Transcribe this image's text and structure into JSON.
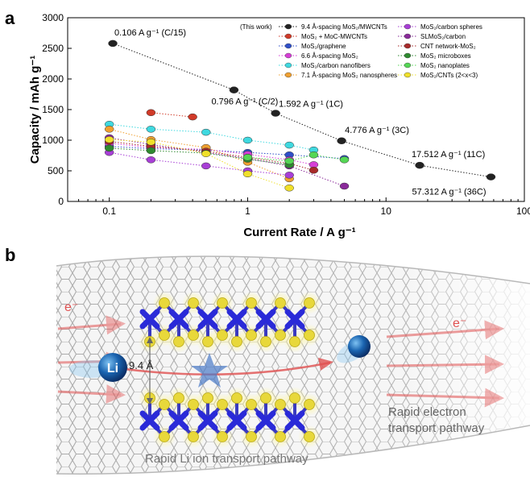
{
  "panel_a_label": "a",
  "panel_b_label": "b",
  "chart_data": {
    "type": "scatter",
    "xscale": "log",
    "xlim": [
      0.05,
      100
    ],
    "ylim": [
      0,
      3000
    ],
    "xlabel": "Current Rate / A g⁻¹",
    "ylabel": "Capacity / mAh g⁻¹",
    "xticks": [
      {
        "value": 0.1,
        "label": "0.1"
      },
      {
        "value": 1,
        "label": "1"
      },
      {
        "value": 10,
        "label": "10"
      },
      {
        "value": 100,
        "label": "100"
      }
    ],
    "yticks": [
      {
        "value": 0,
        "label": "0"
      },
      {
        "value": 500,
        "label": "500"
      },
      {
        "value": 1000,
        "label": "1000"
      },
      {
        "value": 1500,
        "label": "1500"
      },
      {
        "value": 2000,
        "label": "2000"
      },
      {
        "value": 2500,
        "label": "2500"
      },
      {
        "value": 3000,
        "label": "3000"
      }
    ],
    "legend_position": "top-right",
    "legend_note": "(This work)",
    "series": [
      {
        "name": "9.4 Å-spacing MoS₂/MWCNTs",
        "color": "#222222",
        "points": [
          [
            0.106,
            2580
          ],
          [
            0.796,
            1820
          ],
          [
            1.592,
            1440
          ],
          [
            4.776,
            990
          ],
          [
            17.512,
            590
          ],
          [
            57.312,
            400
          ]
        ]
      },
      {
        "name": "MoS₂ + MoC-MWCNTs",
        "color": "#d03a28",
        "points": [
          [
            0.2,
            1450
          ],
          [
            0.4,
            1380
          ]
        ]
      },
      {
        "name": "MoS₂/graphene",
        "color": "#2f4fc8",
        "points": [
          [
            0.1,
            900
          ],
          [
            0.2,
            860
          ],
          [
            0.5,
            840
          ],
          [
            1.0,
            800
          ],
          [
            2.0,
            760
          ],
          [
            5.0,
            700
          ]
        ]
      },
      {
        "name": "6.6 Å-spacing MoS₂",
        "color": "#d63fd6",
        "points": [
          [
            0.1,
            950
          ],
          [
            0.2,
            880
          ],
          [
            0.5,
            850
          ],
          [
            1.0,
            770
          ],
          [
            2.0,
            680
          ],
          [
            3.0,
            600
          ]
        ]
      },
      {
        "name": "MoS₂/carbon nanofibers",
        "color": "#3fd9e0",
        "points": [
          [
            0.1,
            1260
          ],
          [
            0.2,
            1180
          ],
          [
            0.5,
            1130
          ],
          [
            1.0,
            1000
          ],
          [
            2.0,
            920
          ],
          [
            3.0,
            840
          ]
        ]
      },
      {
        "name": "7.1 Å-spacing MoS₂ nanospheres",
        "color": "#f0a030",
        "points": [
          [
            0.1,
            1180
          ],
          [
            0.2,
            1010
          ],
          [
            0.5,
            880
          ],
          [
            1.0,
            640
          ],
          [
            2.0,
            370
          ]
        ]
      },
      {
        "name": "MoS₂/carbon spheres",
        "color": "#a83fd6",
        "points": [
          [
            0.1,
            800
          ],
          [
            0.2,
            680
          ],
          [
            0.5,
            580
          ],
          [
            1.0,
            500
          ],
          [
            2.0,
            430
          ]
        ]
      },
      {
        "name": "SLMoS₂/carbon",
        "color": "#8a2a9a",
        "points": [
          [
            0.1,
            1040
          ],
          [
            0.2,
            930
          ],
          [
            0.5,
            800
          ],
          [
            1.0,
            700
          ],
          [
            2.0,
            580
          ],
          [
            5.0,
            250
          ]
        ]
      },
      {
        "name": "CNT network-MoS₂",
        "color": "#a82a2a",
        "points": [
          [
            0.1,
            980
          ],
          [
            0.2,
            900
          ],
          [
            0.5,
            820
          ],
          [
            1.0,
            720
          ],
          [
            2.0,
            620
          ],
          [
            3.0,
            510
          ]
        ]
      },
      {
        "name": "MoS₂ microboxes",
        "color": "#2f8a30",
        "points": [
          [
            0.1,
            870
          ],
          [
            0.2,
            830
          ],
          [
            0.5,
            790
          ],
          [
            1.0,
            690
          ],
          [
            2.0,
            600
          ]
        ]
      },
      {
        "name": "MoS₂ nanoplates",
        "color": "#55d655",
        "points": [
          [
            1.0,
            720
          ],
          [
            2.0,
            660
          ],
          [
            3.0,
            760
          ],
          [
            5.0,
            680
          ]
        ]
      },
      {
        "name": "MoS₂/CNTs (2<x<3)",
        "color": "#f0e02a",
        "points": [
          [
            0.1,
            1010
          ],
          [
            0.2,
            970
          ],
          [
            0.5,
            780
          ],
          [
            1.0,
            450
          ],
          [
            2.0,
            220
          ]
        ]
      }
    ],
    "annotations": [
      {
        "text": "0.106 A g⁻¹ (C/15)",
        "x": 0.106,
        "y": 2580
      },
      {
        "text": "0.796 A g⁻¹ (C/2)",
        "x": 0.796,
        "y": 1820
      },
      {
        "text": "1.592 A g⁻¹ (1C)",
        "x": 1.592,
        "y": 1440
      },
      {
        "text": "4.776 A g⁻¹ (3C)",
        "x": 4.776,
        "y": 990
      },
      {
        "text": "17.512 A g⁻¹ (11C)",
        "x": 17.512,
        "y": 590
      },
      {
        "text": "57.312 A g⁻¹ (36C)",
        "x": 57.312,
        "y": 400
      }
    ]
  },
  "illustration": {
    "electron_label_left": "e⁻",
    "electron_label_right": "e⁻",
    "li_label": "Li",
    "spacing_label": "9.4 Å",
    "electron_pathway": "Rapid electron transport pathway",
    "ion_pathway": "Rapid Li ion transport pathway",
    "colors": {
      "molybdenum": "#2a2ad8",
      "sulfur": "#e8d83a",
      "nanotube": "#9a9a9a",
      "electron_arrow": "#e05050",
      "lithium": "#1a64b0"
    }
  }
}
